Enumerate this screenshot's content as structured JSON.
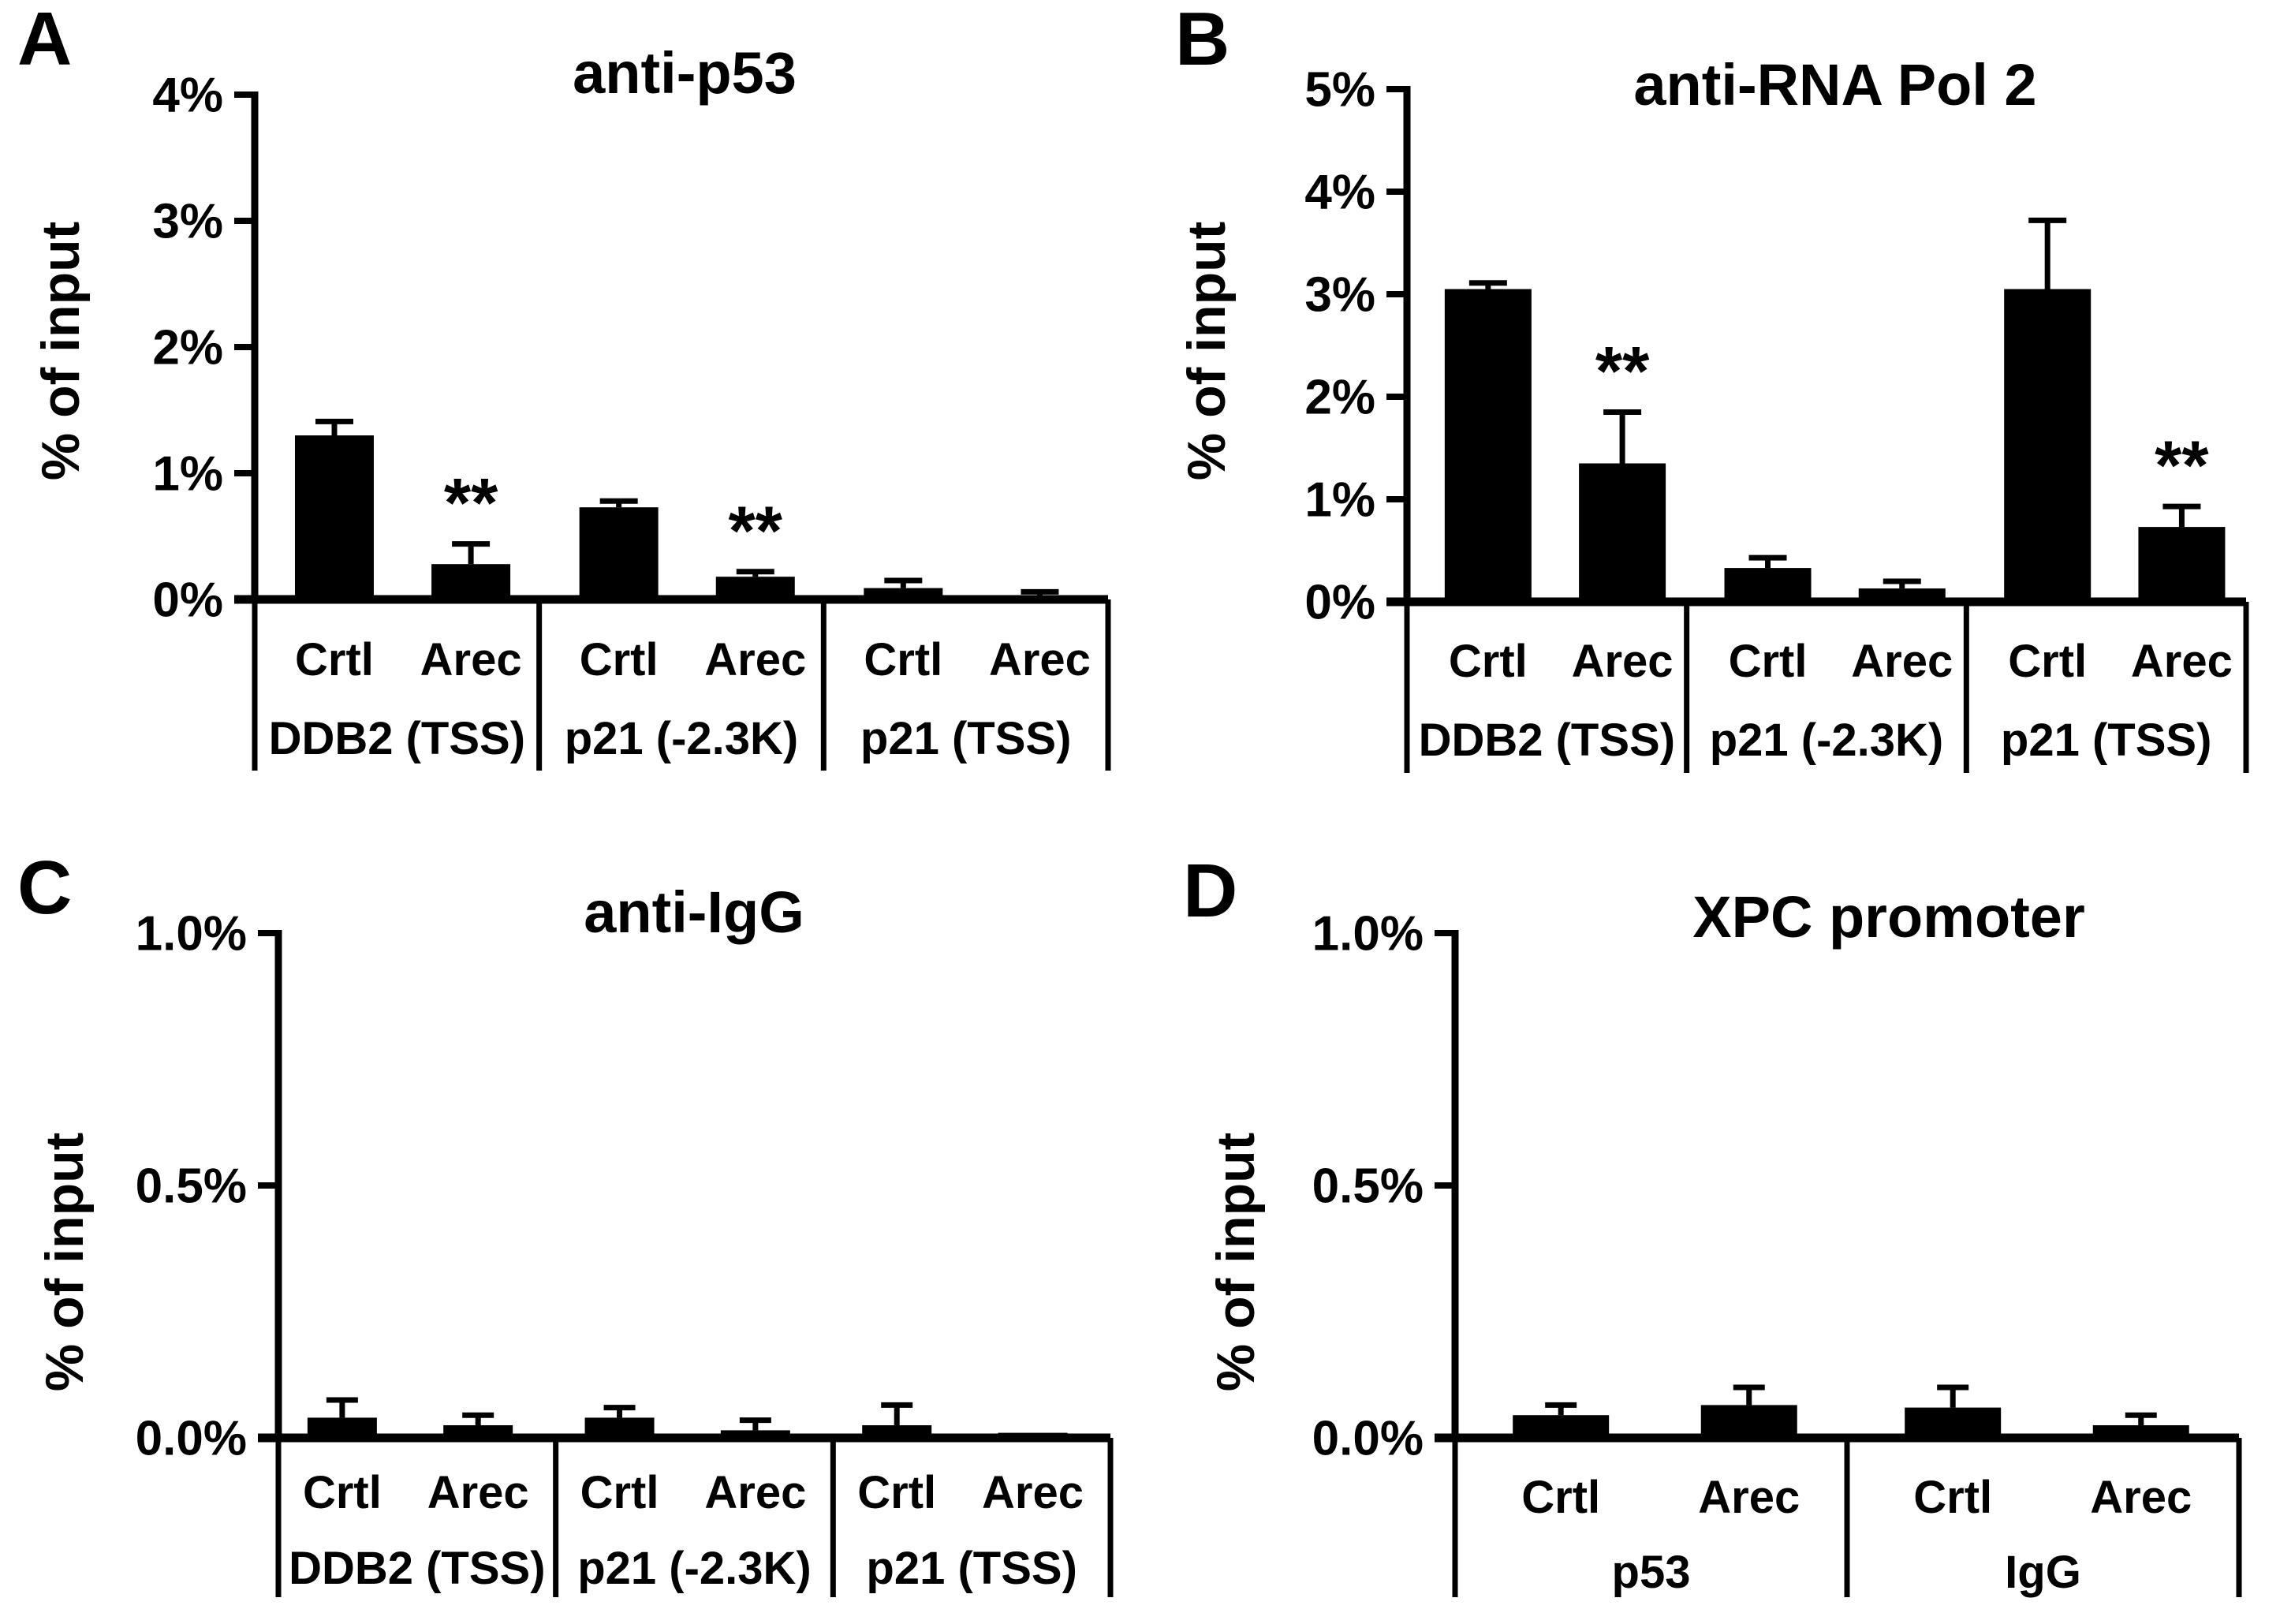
{
  "figure": {
    "background_color": "#ffffff",
    "bar_color": "#000000",
    "axis_color": "#000000",
    "text_color": "#000000",
    "significance_symbol": "**"
  },
  "chart_data": [
    {
      "id": "a",
      "type": "bar",
      "panel_letter": "A",
      "title": "anti-p53",
      "ylabel": "% of input",
      "xlabel": "",
      "ylim": [
        0,
        4
      ],
      "grid": false,
      "legend": false,
      "yticks": [
        {
          "v": 4,
          "label": "4%"
        },
        {
          "v": 3,
          "label": "3%"
        },
        {
          "v": 2,
          "label": "2%"
        },
        {
          "v": 1,
          "label": "1%"
        },
        {
          "v": 0,
          "label": "0%"
        }
      ],
      "condition_labels": [
        "Crtl",
        "Arec"
      ],
      "group_labels": [
        "DDB2 (TSS)",
        "p21 (-2.3K)",
        "p21 (TSS)"
      ],
      "series": [
        {
          "group": "DDB2 (TSS)",
          "condition": "Crtl",
          "value": 1.3,
          "error": 0.11,
          "sig": ""
        },
        {
          "group": "DDB2 (TSS)",
          "condition": "Arec",
          "value": 0.28,
          "error": 0.16,
          "sig": "**"
        },
        {
          "group": "p21 (-2.3K)",
          "condition": "Crtl",
          "value": 0.73,
          "error": 0.05,
          "sig": ""
        },
        {
          "group": "p21 (-2.3K)",
          "condition": "Arec",
          "value": 0.18,
          "error": 0.04,
          "sig": "**"
        },
        {
          "group": "p21 (TSS)",
          "condition": "Crtl",
          "value": 0.09,
          "error": 0.06,
          "sig": ""
        },
        {
          "group": "p21 (TSS)",
          "condition": "Arec",
          "value": 0.02,
          "error": 0.04,
          "sig": ""
        }
      ]
    },
    {
      "id": "b",
      "type": "bar",
      "panel_letter": "B",
      "title": "anti-RNA Pol 2",
      "ylabel": "% of input",
      "xlabel": "",
      "ylim": [
        0,
        5
      ],
      "grid": false,
      "legend": false,
      "yticks": [
        {
          "v": 5,
          "label": "5%"
        },
        {
          "v": 4,
          "label": "4%"
        },
        {
          "v": 3,
          "label": "3%"
        },
        {
          "v": 2,
          "label": "2%"
        },
        {
          "v": 1,
          "label": "1%"
        },
        {
          "v": 0,
          "label": "0%"
        }
      ],
      "condition_labels": [
        "Crtl",
        "Arec"
      ],
      "group_labels": [
        "DDB2 (TSS)",
        "p21 (-2.3K)",
        "p21 (TSS)"
      ],
      "series": [
        {
          "group": "DDB2 (TSS)",
          "condition": "Crtl",
          "value": 3.05,
          "error": 0.06,
          "sig": ""
        },
        {
          "group": "DDB2 (TSS)",
          "condition": "Arec",
          "value": 1.35,
          "error": 0.5,
          "sig": "**"
        },
        {
          "group": "p21 (-2.3K)",
          "condition": "Crtl",
          "value": 0.33,
          "error": 0.1,
          "sig": ""
        },
        {
          "group": "p21 (-2.3K)",
          "condition": "Arec",
          "value": 0.13,
          "error": 0.07,
          "sig": ""
        },
        {
          "group": "p21 (TSS)",
          "condition": "Crtl",
          "value": 3.05,
          "error": 0.67,
          "sig": ""
        },
        {
          "group": "p21 (TSS)",
          "condition": "Arec",
          "value": 0.73,
          "error": 0.2,
          "sig": "**"
        }
      ]
    },
    {
      "id": "c",
      "type": "bar",
      "panel_letter": "C",
      "title": "anti-IgG",
      "ylabel": "% of input",
      "xlabel": "",
      "ylim": [
        0,
        1
      ],
      "grid": false,
      "legend": false,
      "yticks": [
        {
          "v": 1.0,
          "label": "1.0%"
        },
        {
          "v": 0.5,
          "label": "0.5%"
        },
        {
          "v": 0.0,
          "label": "0.0%"
        }
      ],
      "condition_labels": [
        "Crtl",
        "Arec"
      ],
      "group_labels": [
        "DDB2 (TSS)",
        "p21 (-2.3K)",
        "p21 (TSS)"
      ],
      "series": [
        {
          "group": "DDB2 (TSS)",
          "condition": "Crtl",
          "value": 0.04,
          "error": 0.035,
          "sig": ""
        },
        {
          "group": "DDB2 (TSS)",
          "condition": "Arec",
          "value": 0.025,
          "error": 0.02,
          "sig": ""
        },
        {
          "group": "p21 (-2.3K)",
          "condition": "Crtl",
          "value": 0.04,
          "error": 0.02,
          "sig": ""
        },
        {
          "group": "p21 (-2.3K)",
          "condition": "Arec",
          "value": 0.015,
          "error": 0.02,
          "sig": ""
        },
        {
          "group": "p21 (TSS)",
          "condition": "Crtl",
          "value": 0.025,
          "error": 0.04,
          "sig": ""
        },
        {
          "group": "p21 (TSS)",
          "condition": "Arec",
          "value": 0.01,
          "error": 0.0,
          "sig": ""
        }
      ]
    },
    {
      "id": "d",
      "type": "bar",
      "panel_letter": "D",
      "title": "XPC promoter",
      "ylabel": "% of input",
      "xlabel": "",
      "ylim": [
        0,
        1
      ],
      "grid": false,
      "legend": false,
      "yticks": [
        {
          "v": 1.0,
          "label": "1.0%"
        },
        {
          "v": 0.5,
          "label": "0.5%"
        },
        {
          "v": 0.0,
          "label": "0.0%"
        }
      ],
      "condition_labels": [
        "Crtl",
        "Arec"
      ],
      "group_labels": [
        "p53",
        "IgG"
      ],
      "series": [
        {
          "group": "p53",
          "condition": "Crtl",
          "value": 0.045,
          "error": 0.02,
          "sig": ""
        },
        {
          "group": "p53",
          "condition": "Arec",
          "value": 0.065,
          "error": 0.035,
          "sig": ""
        },
        {
          "group": "IgG",
          "condition": "Crtl",
          "value": 0.06,
          "error": 0.04,
          "sig": ""
        },
        {
          "group": "IgG",
          "condition": "Arec",
          "value": 0.025,
          "error": 0.02,
          "sig": ""
        }
      ]
    }
  ]
}
